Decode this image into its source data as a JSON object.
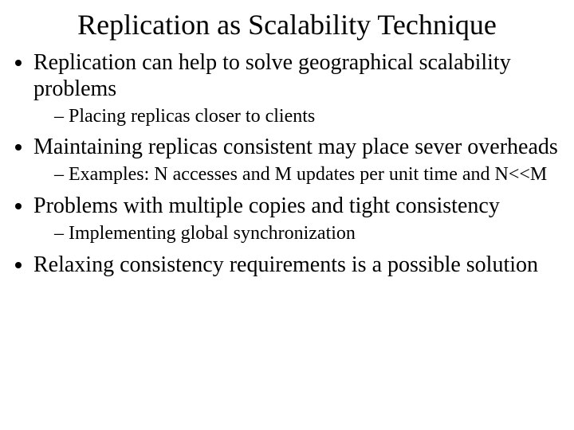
{
  "title": "Replication as Scalability Technique",
  "bullets": [
    {
      "text": "Replication can help to solve geographical scalability problems",
      "sub": [
        "Placing replicas closer to clients"
      ]
    },
    {
      "text": "Maintaining replicas consistent may place sever overheads",
      "sub": [
        "Examples: N accesses and M updates per unit time and N<<M"
      ]
    },
    {
      "text": "Problems with multiple copies and tight consistency",
      "sub": [
        "Implementing global synchronization"
      ]
    },
    {
      "text": "Relaxing consistency requirements is a possible solution",
      "sub": []
    }
  ]
}
